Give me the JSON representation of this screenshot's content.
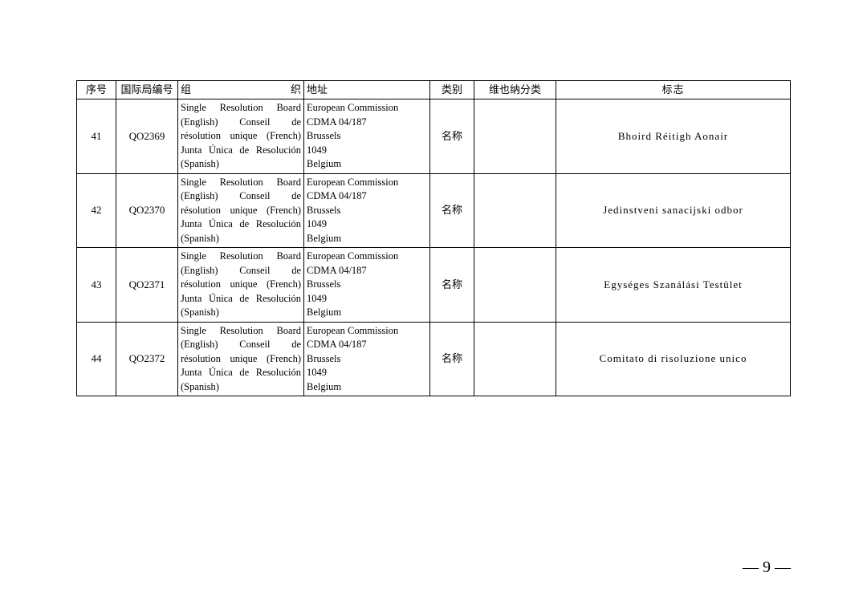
{
  "table": {
    "headers": {
      "seq": "序号",
      "code": "国际局编号",
      "org": "组织",
      "addr": "地址",
      "cat": "类别",
      "vienna": "维也纳分类",
      "logo": "标志"
    },
    "rows": [
      {
        "seq": "41",
        "code": "QO2369",
        "org": "Single Resolution Board (English) Conseil de résolution unique (French) Junta Única de Resolución (Spanish)",
        "addr": "European Commission\nCDMA 04/187\nBrussels\n1049\nBelgium",
        "cat": "名称",
        "vienna": "",
        "logo": "Bhoird Réitigh Aonair"
      },
      {
        "seq": "42",
        "code": "QO2370",
        "org": "Single Resolution Board (English) Conseil de résolution unique (French) Junta Única de Resolución (Spanish)",
        "addr": "European Commission\nCDMA 04/187\nBrussels\n1049\nBelgium",
        "cat": "名称",
        "vienna": "",
        "logo": "Jedinstveni sanacijski odbor"
      },
      {
        "seq": "43",
        "code": "QO2371",
        "org": "Single Resolution Board (English) Conseil de résolution unique (French) Junta Única de Resolución (Spanish)",
        "addr": "European Commission\nCDMA 04/187\nBrussels\n1049\nBelgium",
        "cat": "名称",
        "vienna": "",
        "logo": "Egységes Szanálási Testület"
      },
      {
        "seq": "44",
        "code": "QO2372",
        "org": "Single Resolution Board (English) Conseil de résolution unique (French) Junta Única de Resolución (Spanish)",
        "addr": "European Commission\nCDMA 04/187\nBrussels\n1049\nBelgium",
        "cat": "名称",
        "vienna": "",
        "logo": "Comitato di risoluzione unico"
      }
    ]
  },
  "page_number": "— 9 —",
  "styles": {
    "font_family": "SimSun",
    "border_color": "#000000",
    "background_color": "#ffffff",
    "header_fontsize": 13,
    "cell_fontsize": 13,
    "org_fontsize": 12.5,
    "page_number_fontsize": 20
  }
}
